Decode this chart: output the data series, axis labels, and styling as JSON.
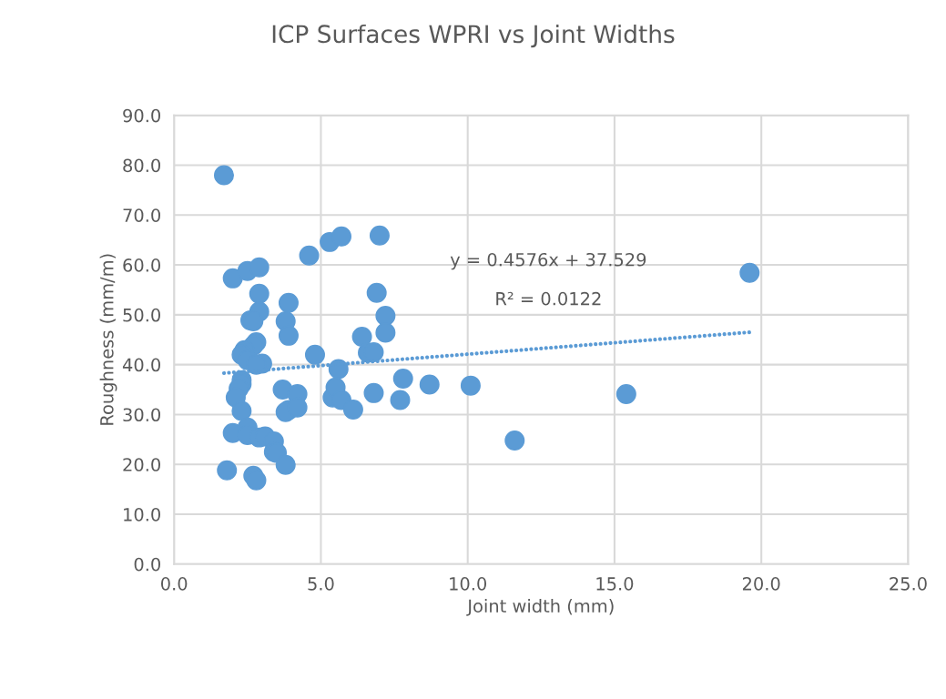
{
  "chart_data": {
    "type": "scatter",
    "title": "ICP Surfaces WPRI vs Joint Widths",
    "xlabel": "Joint width (mm)",
    "ylabel": "Roughness (mm/m)",
    "xlim": [
      0,
      25
    ],
    "xticks": [
      {
        "value": 0,
        "label": "0.0"
      },
      {
        "value": 5,
        "label": "5.0"
      },
      {
        "value": 10,
        "label": "10.0"
      },
      {
        "value": 15,
        "label": "15.0"
      },
      {
        "value": 20,
        "label": "20.0"
      },
      {
        "value": 25,
        "label": "25.0"
      }
    ],
    "ylim": [
      0,
      90
    ],
    "yticks": [
      {
        "value": 0,
        "label": "0.0"
      },
      {
        "value": 10,
        "label": "10.0"
      },
      {
        "value": 20,
        "label": "20.0"
      },
      {
        "value": 30,
        "label": "30.0"
      },
      {
        "value": 40,
        "label": "40.0"
      },
      {
        "value": 50,
        "label": "50.0"
      },
      {
        "value": 60,
        "label": "60.0"
      },
      {
        "value": 70,
        "label": "70.0"
      },
      {
        "value": 80,
        "label": "80.0"
      },
      {
        "value": 90,
        "label": "90.0"
      }
    ],
    "grid": true,
    "series": [
      {
        "color": "#5b9bd5",
        "marker": "circle",
        "x": [
          1.7,
          2.0,
          2.5,
          2.9,
          2.9,
          2.9,
          2.6,
          2.7,
          2.8,
          2.7,
          2.4,
          2.3,
          2.5,
          3.0,
          2.8,
          2.3,
          2.3,
          2.2,
          2.1,
          2.3,
          2.0,
          2.5,
          2.5,
          2.9,
          3.1,
          3.4,
          3.4,
          3.5,
          1.8,
          2.7,
          2.8,
          3.8,
          3.7,
          3.9,
          3.8,
          4.2,
          4.2,
          3.9,
          3.8,
          3.9,
          4.6,
          4.8,
          5.3,
          5.7,
          5.4,
          5.5,
          5.6,
          5.7,
          6.1,
          6.4,
          6.6,
          6.8,
          6.8,
          6.9,
          7.0,
          7.2,
          7.2,
          7.8,
          7.7,
          8.7,
          10.1,
          11.6,
          15.4,
          19.6
        ],
        "values": [
          78.0,
          57.3,
          58.8,
          59.5,
          54.2,
          50.6,
          48.9,
          48.7,
          44.5,
          43.8,
          42.9,
          42.0,
          40.9,
          40.2,
          40.0,
          36.9,
          36.1,
          35.2,
          33.4,
          30.7,
          26.3,
          27.4,
          25.9,
          25.4,
          25.6,
          24.6,
          22.5,
          22.3,
          18.8,
          17.7,
          16.8,
          19.9,
          35.0,
          30.9,
          30.5,
          34.1,
          31.4,
          52.4,
          48.7,
          45.8,
          61.9,
          42.0,
          64.6,
          65.7,
          33.4,
          35.4,
          39.1,
          32.9,
          31.0,
          45.6,
          42.4,
          42.5,
          34.3,
          54.4,
          65.9,
          49.8,
          46.4,
          37.2,
          32.9,
          36.0,
          35.8,
          24.8,
          34.1,
          58.4
        ]
      },
      {
        "type": "line",
        "color": "#5b9bd5",
        "line_style": "dotted",
        "x": [
          1.7,
          19.6
        ],
        "values": [
          38.3,
          46.5
        ]
      }
    ],
    "annotations": [
      "y = 0.4576x + 37.529",
      "R² = 0.0122"
    ]
  }
}
